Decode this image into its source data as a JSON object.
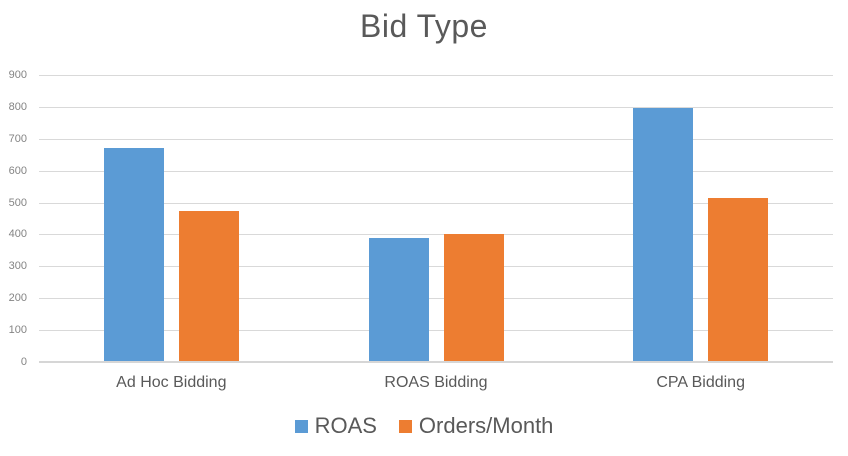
{
  "title": "Bid Type",
  "colors": {
    "series_roas": "#5B9BD5",
    "series_orders": "#ED7D31",
    "gridline": "#D9D9D9",
    "axis_line": "#D6D6D6",
    "title_text": "#595959",
    "tick_text": "#848484"
  },
  "legend": {
    "items": [
      {
        "label": "ROAS",
        "color": "#5B9BD5"
      },
      {
        "label": "Orders/Month",
        "color": "#ED7D31"
      }
    ]
  },
  "chart_data": {
    "type": "bar",
    "title": "Bid Type",
    "categories": [
      "Ad Hoc Bidding",
      "ROAS Bidding",
      "CPA Bidding"
    ],
    "series": [
      {
        "name": "ROAS",
        "color": "#5B9BD5",
        "values": [
          670,
          390,
          795
        ]
      },
      {
        "name": "Orders/Month",
        "color": "#ED7D31",
        "values": [
          475,
          400,
          515
        ]
      }
    ],
    "xlabel": "",
    "ylabel": "",
    "ylim": [
      0,
      900
    ],
    "yticks": [
      0,
      100,
      200,
      300,
      400,
      500,
      600,
      700,
      800,
      900
    ],
    "grid": true,
    "legend_position": "bottom"
  }
}
